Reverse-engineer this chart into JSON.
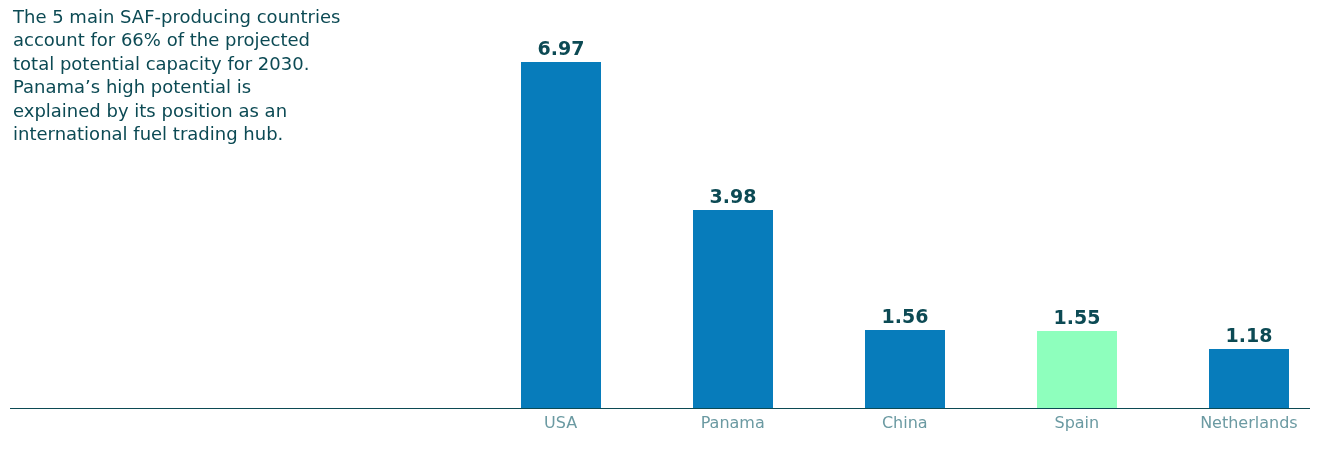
{
  "chart_data": {
    "type": "bar",
    "title": "The 5 main SAF-producing countries account for 66% of the projected total potential capacity for 2030. Panama’s high potential is explained by its position as an international fuel trading hub.",
    "categories": [
      "USA",
      "Panama",
      "China",
      "Spain",
      "Netherlands"
    ],
    "values": [
      6.97,
      3.98,
      1.56,
      1.55,
      1.18
    ],
    "colors": [
      "#077cbb",
      "#077cbb",
      "#077cbb",
      "#8effbd",
      "#077cbb"
    ],
    "data_labels": true
  }
}
